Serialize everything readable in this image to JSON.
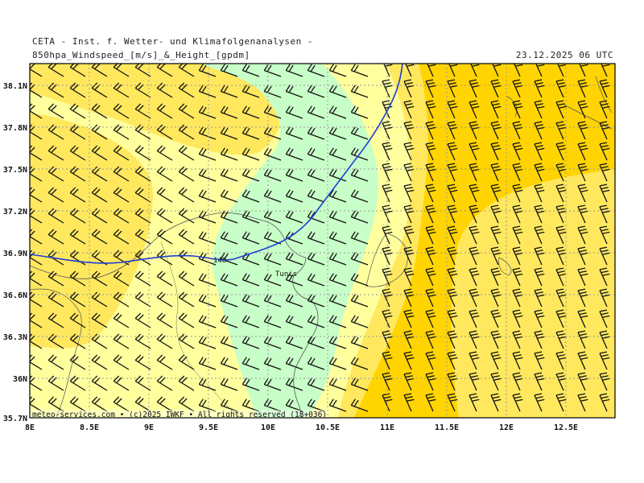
{
  "header": {
    "institute": "CETA - Inst. f. Wetter- und Klimafolgenanalysen -",
    "parameter": "850hpa_Windspeed_[m/s]_&_Height_[gpdm]",
    "datetime": "23.12.2025 06 UTC"
  },
  "map": {
    "lon_range": [
      8.0,
      12.9
    ],
    "lat_range": [
      35.7,
      38.25
    ],
    "x_ticks": [
      "8E",
      "8.5E",
      "9E",
      "9.5E",
      "10E",
      "10.5E",
      "11E",
      "11.5E",
      "12E",
      "12.5E"
    ],
    "y_ticks": [
      "38.1N",
      "37.8N",
      "37.5N",
      "37.2N",
      "36.9N",
      "36.6N",
      "36.3N",
      "36N",
      "35.7N"
    ],
    "contour_label": "148",
    "city": "Tunis",
    "copyright": "meteo-services.com • (c)2025 IWKF • All rights reserved (18+036)",
    "colors": {
      "light_green": "#c8ffc8",
      "light_yellow": "#ffff9e",
      "yellow": "#ffe85e",
      "gold": "#ffd400",
      "contour": "#1f3fd6",
      "grid": "#9a9a9a"
    }
  }
}
